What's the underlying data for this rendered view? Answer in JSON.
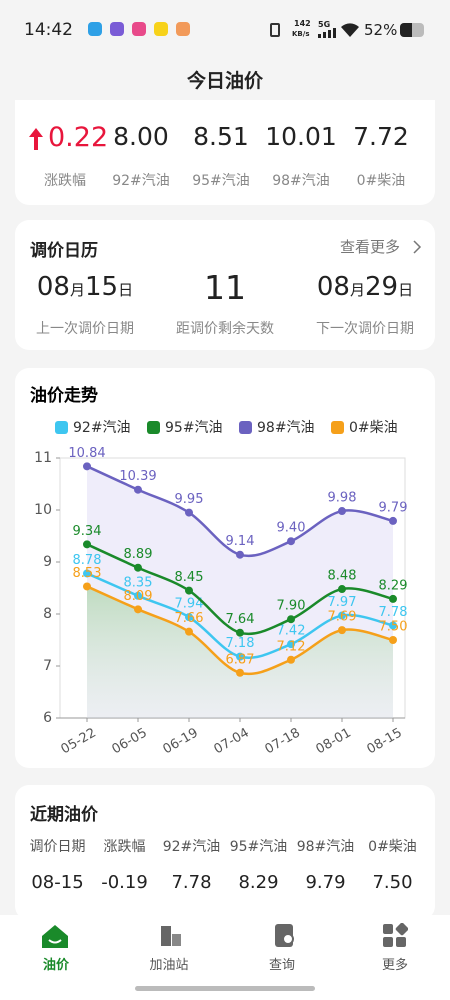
{
  "status_bar": {
    "time": "14:42",
    "speed": "142",
    "speed_unit": "KB/s",
    "network": "5G",
    "battery": "52%"
  },
  "header": {
    "title": "今日油价"
  },
  "today": {
    "change": "0.22",
    "prices": [
      "8.00",
      "8.51",
      "10.01",
      "7.72"
    ],
    "labels": [
      "涨跌幅",
      "92#汽油",
      "95#汽油",
      "98#汽油",
      "0#柴油"
    ]
  },
  "calendar": {
    "title": "调价日历",
    "more": "查看更多",
    "last": [
      "08",
      "月",
      "15",
      "日"
    ],
    "days": "11",
    "next": [
      "08",
      "月",
      "29",
      "日"
    ],
    "labels": [
      "上一次调价日期",
      "距调价剩余天数",
      "下一次调价日期"
    ]
  },
  "chart_data": {
    "type": "line",
    "title": "油价走势",
    "categories": [
      "05-22",
      "06-05",
      "06-19",
      "07-04",
      "07-18",
      "08-01",
      "08-15"
    ],
    "series": [
      {
        "name": "92#汽油",
        "color": "#3ec6f0",
        "values": [
          8.78,
          8.35,
          7.94,
          7.18,
          7.42,
          7.97,
          7.78
        ]
      },
      {
        "name": "95#汽油",
        "color": "#1a8a2a",
        "values": [
          9.34,
          8.89,
          8.45,
          7.64,
          7.9,
          8.48,
          8.29
        ],
        "value_labels": [
          "9.34",
          "8.89",
          "8.45",
          "7.64",
          "7.90",
          "8.48",
          "8.29"
        ]
      },
      {
        "name": "98#汽油",
        "color": "#6b62c0",
        "values": [
          10.84,
          10.39,
          9.95,
          9.14,
          9.4,
          9.98,
          9.79
        ],
        "value_labels": [
          "10.84",
          "10.39",
          "9.95",
          "9.14",
          "9.40",
          "9.98",
          "9.79"
        ]
      },
      {
        "name": "0#柴油",
        "color": "#f5a01a",
        "values": [
          8.53,
          8.09,
          7.66,
          6.87,
          7.12,
          7.69,
          7.5
        ],
        "value_labels": [
          "8.53",
          "8.09",
          "7.66",
          "6.87",
          "7.12",
          "7.69",
          "7.50"
        ]
      }
    ],
    "ylim": [
      6,
      11
    ],
    "yticks": [
      6,
      7,
      8,
      9,
      10,
      11
    ],
    "legend": "top"
  },
  "recent": {
    "title": "近期油价",
    "headers": [
      "调价日期",
      "涨跌幅",
      "92#汽油",
      "95#汽油",
      "98#汽油",
      "0#柴油"
    ],
    "row": [
      "08-15",
      "-0.19",
      "7.78",
      "8.29",
      "9.79",
      "7.50"
    ]
  },
  "nav": [
    "油价",
    "加油站",
    "查询",
    "更多"
  ]
}
